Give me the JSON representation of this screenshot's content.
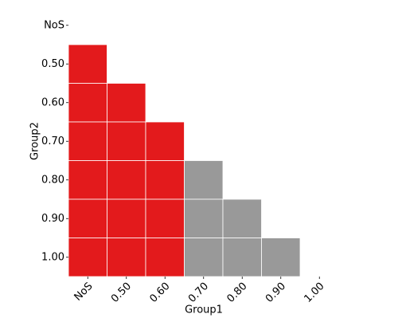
{
  "chart_data": {
    "type": "heatmap",
    "x_label": "Group1",
    "y_label": "Group2",
    "x_categories": [
      "NoS",
      "0.50",
      "0.60",
      "0.70",
      "0.80",
      "0.90",
      "1.00"
    ],
    "y_categories": [
      "NoS",
      "0.50",
      "0.60",
      "0.70",
      "0.80",
      "0.90",
      "1.00"
    ],
    "cell_colors": [
      [
        null,
        null,
        null,
        null,
        null,
        null,
        null
      ],
      [
        "#e31a1c",
        null,
        null,
        null,
        null,
        null,
        null
      ],
      [
        "#e31a1c",
        "#e31a1c",
        null,
        null,
        null,
        null,
        null
      ],
      [
        "#e31a1c",
        "#e31a1c",
        "#e31a1c",
        null,
        null,
        null,
        null
      ],
      [
        "#e31a1c",
        "#e31a1c",
        "#e31a1c",
        "#999999",
        null,
        null,
        null
      ],
      [
        "#e31a1c",
        "#e31a1c",
        "#e31a1c",
        "#999999",
        "#999999",
        null,
        null
      ],
      [
        "#e31a1c",
        "#e31a1c",
        "#e31a1c",
        "#999999",
        "#999999",
        "#999999",
        null
      ]
    ]
  }
}
